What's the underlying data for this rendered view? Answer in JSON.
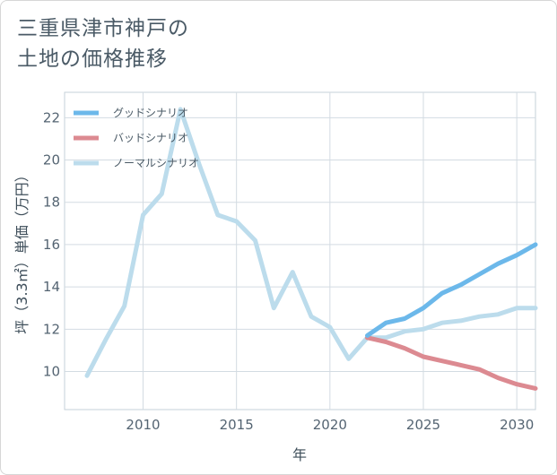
{
  "title_lines": [
    "三重県津市神戸の",
    "土地の価格推移"
  ],
  "chart_data": {
    "type": "line",
    "title": "三重県津市神戸の土地の価格推移",
    "xlabel": "年",
    "ylabel": "坪（3.3㎡）単価（万円）",
    "xlim": [
      2005.8,
      2031
    ],
    "ylim": [
      8.2,
      23.2
    ],
    "xticks": [
      2010,
      2015,
      2020,
      2025,
      2030
    ],
    "yticks": [
      10,
      12,
      14,
      16,
      18,
      20,
      22
    ],
    "grid": true,
    "legend_position": "top-left",
    "series": [
      {
        "name": "グッドシナリオ",
        "color": "#6cb8ea",
        "x": [
          2022,
          2023,
          2024,
          2025,
          2026,
          2027,
          2028,
          2029,
          2030,
          2031
        ],
        "y": [
          11.7,
          12.3,
          12.5,
          13.0,
          13.7,
          14.1,
          14.6,
          15.1,
          15.5,
          16.0
        ]
      },
      {
        "name": "バッドシナリオ",
        "color": "#dc8a91",
        "x": [
          2022,
          2023,
          2024,
          2025,
          2026,
          2027,
          2028,
          2029,
          2030,
          2031
        ],
        "y": [
          11.6,
          11.4,
          11.1,
          10.7,
          10.5,
          10.3,
          10.1,
          9.7,
          9.4,
          9.2
        ]
      },
      {
        "name": "ノーマルシナリオ",
        "color": "#bcdcec",
        "x": [
          2007,
          2008,
          2009,
          2010,
          2011,
          2012,
          2013,
          2014,
          2015,
          2016,
          2017,
          2018,
          2019,
          2020,
          2021,
          2022,
          2023,
          2024,
          2025,
          2026,
          2027,
          2028,
          2029,
          2030,
          2031
        ],
        "y": [
          9.8,
          11.5,
          13.1,
          17.4,
          18.4,
          22.4,
          19.8,
          17.4,
          17.1,
          16.2,
          13.0,
          14.7,
          12.6,
          12.1,
          10.6,
          11.6,
          11.6,
          11.9,
          12.0,
          12.3,
          12.4,
          12.6,
          12.7,
          13.0,
          13.0
        ]
      }
    ]
  }
}
